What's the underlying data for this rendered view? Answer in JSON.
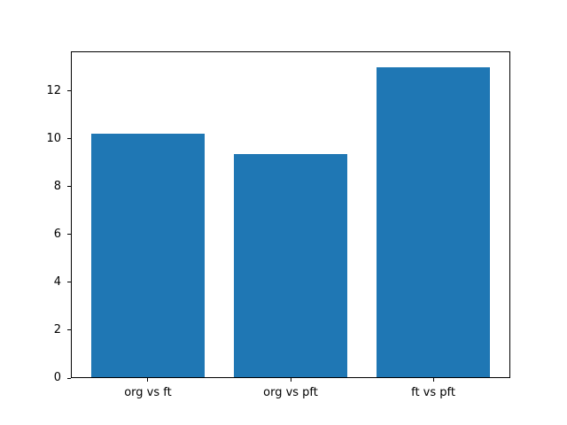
{
  "chart_data": {
    "type": "bar",
    "categories": [
      "org vs ft",
      "org vs pft",
      "ft vs pft"
    ],
    "values": [
      10.2,
      9.35,
      13.0
    ],
    "title": "",
    "xlabel": "",
    "ylabel": "",
    "ylim": [
      0,
      13.65
    ],
    "yticks": [
      0,
      2,
      4,
      6,
      8,
      10,
      12
    ],
    "bar_width_fraction": 0.8,
    "grid": false,
    "legend": null,
    "colors": {
      "bar": "#1f77b4",
      "spine": "#000000",
      "tick_text": "#000000",
      "background": "#ffffff"
    }
  }
}
